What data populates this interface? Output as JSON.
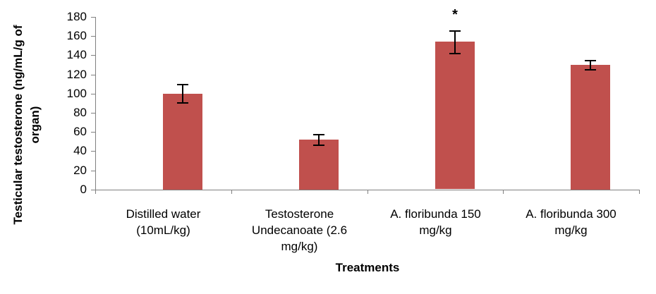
{
  "chart_data": {
    "type": "bar",
    "title": "",
    "xlabel": "Treatments",
    "ylabel": "Testicular testosterone (ng/mL/g of\norgan)",
    "categories": [
      "Distilled water\n(10mL/kg)",
      "Testosterone\nUndecanoate (2.6\nmg/kg)",
      "A. floribunda 150\nmg/kg",
      "A. floribunda 300\nmg/kg"
    ],
    "values": [
      100,
      52,
      154,
      130
    ],
    "error_bars": [
      10,
      6,
      12,
      5
    ],
    "significance_markers": [
      "",
      "",
      "*",
      ""
    ],
    "ylim": [
      0,
      180
    ],
    "ytick_step": 20,
    "grid": false,
    "legend": "none",
    "colors": {
      "bar_fill": "#C0504D",
      "axis_line": "#808080",
      "error_bar": "#000000",
      "text": "#000000"
    }
  }
}
